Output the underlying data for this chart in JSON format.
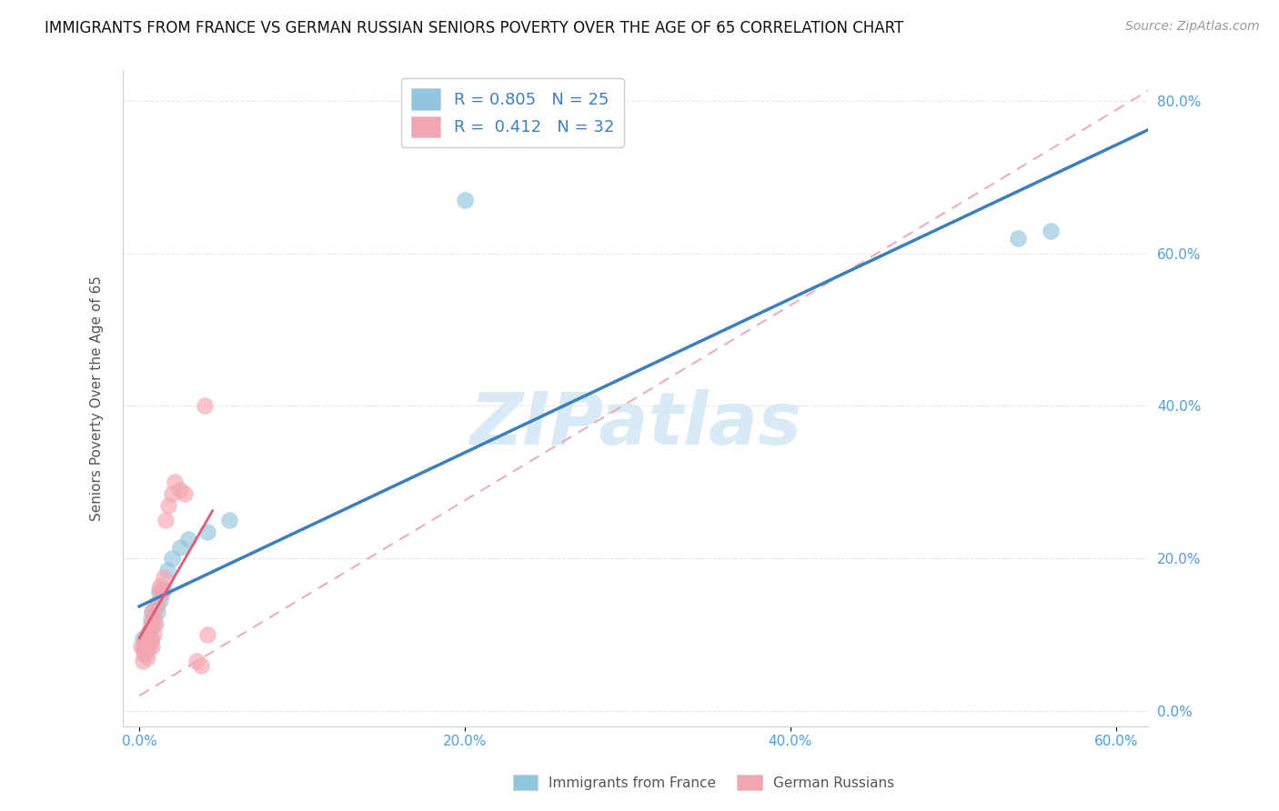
{
  "title": "IMMIGRANTS FROM FRANCE VS GERMAN RUSSIAN SENIORS POVERTY OVER THE AGE OF 65 CORRELATION CHART",
  "source": "Source: ZipAtlas.com",
  "ylabel": "Seniors Poverty Over the Age of 65",
  "xlabel_ticks": [
    "0.0%",
    "20.0%",
    "40.0%",
    "60.0%"
  ],
  "ylabel_ticks": [
    "0.0%",
    "20.0%",
    "40.0%",
    "60.0%",
    "80.0%"
  ],
  "xlim": [
    -0.01,
    0.62
  ],
  "ylim": [
    -0.02,
    0.84
  ],
  "legend_label1": "R = 0.805   N = 25",
  "legend_label2": "R =  0.412   N = 32",
  "color_blue": "#92c5de",
  "color_pink": "#f4a6b0",
  "trendline_blue": "#3d7ebd",
  "trendline_pink": "#e05a7a",
  "trendline_dashed_color": "#e8a0b0",
  "watermark_text": "ZIPatlas",
  "watermark_color": "#d8eaf6",
  "footer_label1": "Immigrants from France",
  "footer_label2": "German Russians",
  "blue_scatter_x": [
    0.002,
    0.003,
    0.004,
    0.005,
    0.005,
    0.006,
    0.006,
    0.007,
    0.007,
    0.008,
    0.009,
    0.01,
    0.011,
    0.012,
    0.013,
    0.015,
    0.017,
    0.02,
    0.025,
    0.03,
    0.042,
    0.055,
    0.2,
    0.54,
    0.56
  ],
  "blue_scatter_y": [
    0.095,
    0.085,
    0.075,
    0.1,
    0.085,
    0.09,
    0.105,
    0.12,
    0.095,
    0.13,
    0.115,
    0.14,
    0.13,
    0.155,
    0.145,
    0.16,
    0.185,
    0.2,
    0.215,
    0.225,
    0.235,
    0.25,
    0.67,
    0.62,
    0.63
  ],
  "pink_scatter_x": [
    0.001,
    0.002,
    0.003,
    0.003,
    0.004,
    0.004,
    0.005,
    0.005,
    0.006,
    0.006,
    0.007,
    0.007,
    0.008,
    0.008,
    0.009,
    0.009,
    0.01,
    0.011,
    0.012,
    0.013,
    0.014,
    0.015,
    0.016,
    0.018,
    0.02,
    0.022,
    0.025,
    0.028,
    0.035,
    0.04,
    0.042,
    0.038
  ],
  "pink_scatter_y": [
    0.085,
    0.065,
    0.075,
    0.08,
    0.09,
    0.095,
    0.07,
    0.1,
    0.085,
    0.105,
    0.09,
    0.115,
    0.085,
    0.13,
    0.1,
    0.125,
    0.115,
    0.14,
    0.16,
    0.165,
    0.155,
    0.175,
    0.25,
    0.27,
    0.285,
    0.3,
    0.29,
    0.285,
    0.065,
    0.4,
    0.1,
    0.06
  ],
  "background_color": "#ffffff",
  "grid_color": "#e8e8e8",
  "title_fontsize": 12,
  "axis_label_fontsize": 11,
  "tick_fontsize": 11,
  "scatter_size": 180,
  "scatter_alpha": 0.65
}
